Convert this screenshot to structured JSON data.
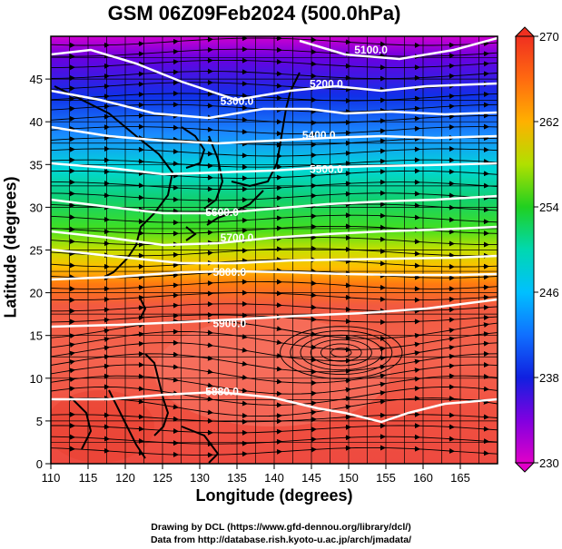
{
  "title": "GSM 06Z09Feb2024 (500.0hPa)",
  "chart_data": {
    "type": "heatmap",
    "title": "GSM 06Z09Feb2024 (500.0hPa)",
    "xlabel": "Longitude (degrees)",
    "ylabel": "Latitude  (degrees)",
    "xlim": [
      110,
      170
    ],
    "ylim": [
      0,
      50
    ],
    "xticks": [
      "110",
      "115",
      "120",
      "125",
      "130",
      "135",
      "140",
      "145",
      "150",
      "155",
      "160",
      "165"
    ],
    "yticks": [
      "0",
      "5",
      "10",
      "15",
      "20",
      "25",
      "30",
      "35",
      "40",
      "45"
    ],
    "colorbar": {
      "min": 230,
      "max": 270,
      "ticks": [
        "230",
        "238",
        "246",
        "254",
        "262",
        "270"
      ]
    },
    "contours": [
      {
        "label": "5100.0"
      },
      {
        "label": "5200.0"
      },
      {
        "label": "5300.0"
      },
      {
        "label": "5400.0"
      },
      {
        "label": "5500.0"
      },
      {
        "label": "5600.0"
      },
      {
        "label": "5700.0"
      },
      {
        "label": "5800.0"
      },
      {
        "label": "5900.0"
      },
      {
        "label": "5880.0"
      }
    ],
    "grid": true
  },
  "credits": {
    "line1": "Drawing by DCL (https://www.gfd-dennou.org/library/dcl/)",
    "line2": "Data from http://database.rish.kyoto-u.ac.jp/arch/jmadata/"
  }
}
